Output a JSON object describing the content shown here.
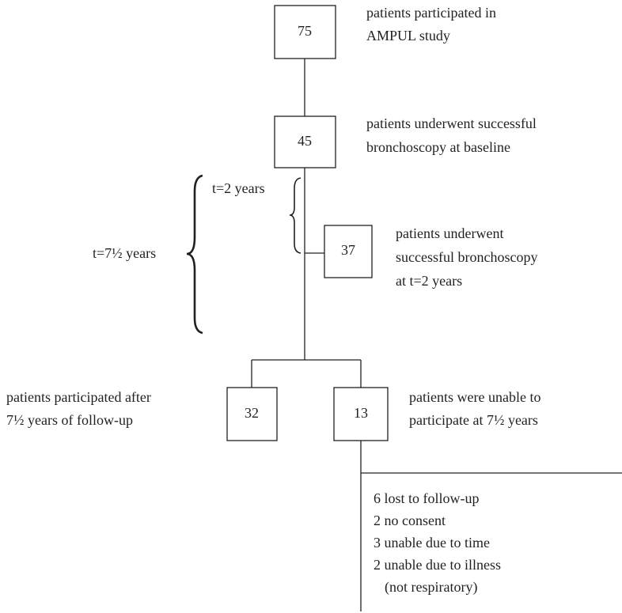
{
  "nodes": [
    {
      "count": 75,
      "lines": [
        "patients participated in",
        "AMPUL study"
      ]
    },
    {
      "count": 45,
      "lines": [
        "patients underwent successful",
        "bronchoscopy at baseline"
      ]
    },
    {
      "count": 37,
      "lines": [
        "patients underwent",
        "successful bronchoscopy",
        "at t=2 years"
      ]
    },
    {
      "count": 32,
      "lines": [
        "patients participated after",
        "7½ years of follow-up"
      ]
    },
    {
      "count": 13,
      "lines": [
        "patients were unable to",
        "participate at 7½ years"
      ]
    }
  ],
  "intervals": [
    "t=2 years",
    "t=7½ years"
  ],
  "reasons": [
    "6 lost to follow-up",
    "2 no consent",
    "3 unable due to time",
    "2 unable due to illness",
    "(not respiratory)"
  ]
}
